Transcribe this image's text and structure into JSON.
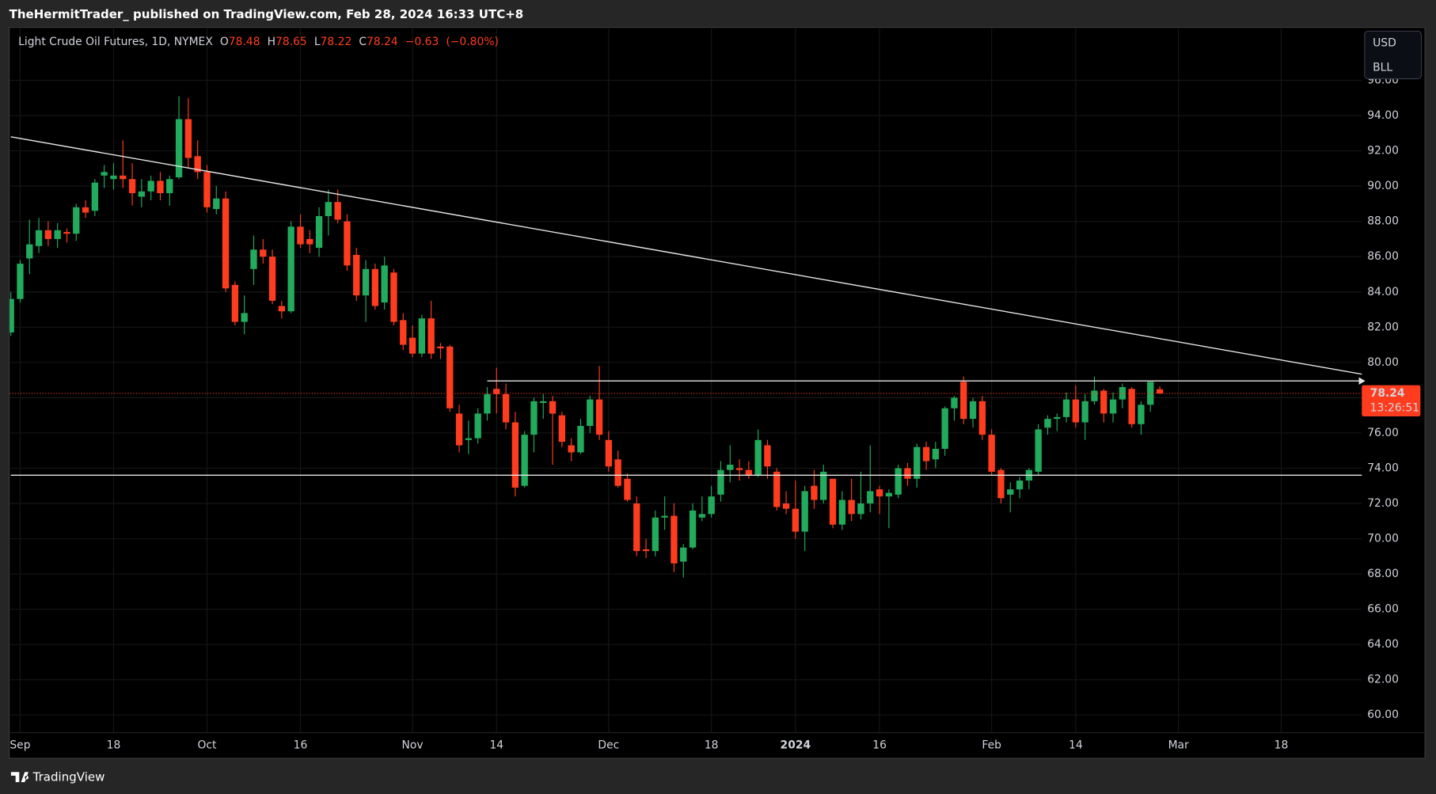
{
  "header": {
    "text": "TheHermitTrader_ published on TradingView.com, Feb 28, 2024 16:33 UTC+8"
  },
  "footer": {
    "brand": "TradingView"
  },
  "chart_data": {
    "type": "candlestick",
    "title": "Light Crude Oil Futures, 1D, NYMEX",
    "ohlc_labels": [
      "O",
      "H",
      "L",
      "C"
    ],
    "change": {
      "value": -0.63,
      "label": "−0.63"
    },
    "change_percent": {
      "value": -0.8,
      "label": "(−0.80%)"
    },
    "countdown": "13:26:51",
    "currency": "USD",
    "unit": "BLL",
    "up_color": "#22ab5c",
    "down_color": "#ff3d1e",
    "grid": true,
    "x": [
      "2023-08-31",
      "2023-09-01",
      "2023-09-05",
      "2023-09-06",
      "2023-09-07",
      "2023-09-08",
      "2023-09-11",
      "2023-09-12",
      "2023-09-13",
      "2023-09-14",
      "2023-09-15",
      "2023-09-18",
      "2023-09-19",
      "2023-09-20",
      "2023-09-21",
      "2023-09-22",
      "2023-09-25",
      "2023-09-26",
      "2023-09-27",
      "2023-09-28",
      "2023-09-29",
      "2023-10-02",
      "2023-10-03",
      "2023-10-04",
      "2023-10-05",
      "2023-10-06",
      "2023-10-09",
      "2023-10-10",
      "2023-10-11",
      "2023-10-12",
      "2023-10-13",
      "2023-10-16",
      "2023-10-17",
      "2023-10-18",
      "2023-10-19",
      "2023-10-20",
      "2023-10-23",
      "2023-10-24",
      "2023-10-25",
      "2023-10-26",
      "2023-10-27",
      "2023-10-30",
      "2023-10-31",
      "2023-11-01",
      "2023-11-02",
      "2023-11-03",
      "2023-11-06",
      "2023-11-07",
      "2023-11-08",
      "2023-11-09",
      "2023-11-10",
      "2023-11-13",
      "2023-11-14",
      "2023-11-15",
      "2023-11-16",
      "2023-11-17",
      "2023-11-20",
      "2023-11-21",
      "2023-11-22",
      "2023-11-24",
      "2023-11-27",
      "2023-11-28",
      "2023-11-29",
      "2023-11-30",
      "2023-12-01",
      "2023-12-04",
      "2023-12-05",
      "2023-12-06",
      "2023-12-07",
      "2023-12-08",
      "2023-12-11",
      "2023-12-12",
      "2023-12-13",
      "2023-12-14",
      "2023-12-15",
      "2023-12-18",
      "2023-12-19",
      "2023-12-20",
      "2023-12-21",
      "2023-12-22",
      "2023-12-26",
      "2023-12-27",
      "2023-12-28",
      "2023-12-29",
      "2024-01-02",
      "2024-01-03",
      "2024-01-04",
      "2024-01-05",
      "2024-01-08",
      "2024-01-09",
      "2024-01-10",
      "2024-01-11",
      "2024-01-12",
      "2024-01-16",
      "2024-01-17",
      "2024-01-18",
      "2024-01-19",
      "2024-01-22",
      "2024-01-23",
      "2024-01-24",
      "2024-01-25",
      "2024-01-26",
      "2024-01-29",
      "2024-01-30",
      "2024-01-31",
      "2024-02-01",
      "2024-02-02",
      "2024-02-05",
      "2024-02-06",
      "2024-02-07",
      "2024-02-08",
      "2024-02-09",
      "2024-02-12",
      "2024-02-13",
      "2024-02-14",
      "2024-02-15",
      "2024-02-16",
      "2024-02-20",
      "2024-02-21",
      "2024-02-22",
      "2024-02-23",
      "2024-02-26",
      "2024-02-27",
      "2024-02-28"
    ],
    "open": [
      81.7,
      83.6,
      85.9,
      86.6,
      87.5,
      87.0,
      87.4,
      87.3,
      88.8,
      88.6,
      90.6,
      90.4,
      90.6,
      90.4,
      89.4,
      89.7,
      90.3,
      89.6,
      90.5,
      93.8,
      91.7,
      90.8,
      88.7,
      89.3,
      84.4,
      82.3,
      85.3,
      86.4,
      86.0,
      83.2,
      82.9,
      87.7,
      87.0,
      86.5,
      88.3,
      89.1,
      88.0,
      86.1,
      83.8,
      85.3,
      83.4,
      85.1,
      82.4,
      81.4,
      80.5,
      82.5,
      80.9,
      80.9,
      77.1,
      75.6,
      75.7,
      77.1,
      78.5,
      78.2,
      76.6,
      73.0,
      75.9,
      77.7,
      77.8,
      77.0,
      75.3,
      74.9,
      76.4,
      77.9,
      75.6,
      74.5,
      73.4,
      72.0,
      69.4,
      69.3,
      71.2,
      71.3,
      68.7,
      69.5,
      71.2,
      71.4,
      72.5,
      73.9,
      74.0,
      73.9,
      73.6,
      75.3,
      73.8,
      72.0,
      71.7,
      70.4,
      73.0,
      72.2,
      73.4,
      70.8,
      72.2,
      71.4,
      72.0,
      72.8,
      72.4,
      72.5,
      74.0,
      73.4,
      75.2,
      74.5,
      75.1,
      77.4,
      78.9,
      76.8,
      77.8,
      75.9,
      73.9,
      72.5,
      72.8,
      73.3,
      73.8,
      76.3,
      76.8,
      76.9,
      77.9,
      76.6,
      77.8,
      78.4,
      77.1,
      77.9,
      78.5,
      76.5,
      77.6,
      78.48
    ],
    "high": [
      84.0,
      85.8,
      88.1,
      88.2,
      88.0,
      87.9,
      87.6,
      89.0,
      89.2,
      90.4,
      91.2,
      91.3,
      92.6,
      91.3,
      90.4,
      90.6,
      90.8,
      90.6,
      95.1,
      95.0,
      92.6,
      91.2,
      90.0,
      89.7,
      84.6,
      83.8,
      87.2,
      87.0,
      86.4,
      83.5,
      88.0,
      88.4,
      87.5,
      88.8,
      89.8,
      89.8,
      88.4,
      86.5,
      85.8,
      85.6,
      86.0,
      85.3,
      82.8,
      82.1,
      82.7,
      83.5,
      81.1,
      81.0,
      77.6,
      76.7,
      77.4,
      78.6,
      79.7,
      78.8,
      77.2,
      76.1,
      78.0,
      78.2,
      78.1,
      77.2,
      75.7,
      76.8,
      78.1,
      79.8,
      76.1,
      75.0,
      73.7,
      72.4,
      70.0,
      71.6,
      72.4,
      72.0,
      69.7,
      72.0,
      72.4,
      73.0,
      74.4,
      75.3,
      74.5,
      74.4,
      76.2,
      75.6,
      74.0,
      72.7,
      73.3,
      73.0,
      73.9,
      74.2,
      73.4,
      72.7,
      73.4,
      73.8,
      75.3,
      73.0,
      72.8,
      74.2,
      74.3,
      75.4,
      75.5,
      75.5,
      77.5,
      78.1,
      79.2,
      78.0,
      78.1,
      76.2,
      74.0,
      73.2,
      73.5,
      74.0,
      76.5,
      77.0,
      77.1,
      78.3,
      78.7,
      78.2,
      79.2,
      78.5,
      78.3,
      78.8,
      78.6,
      77.8,
      78.9,
      78.65
    ],
    "low": [
      81.5,
      83.4,
      85.0,
      86.2,
      86.6,
      86.5,
      86.8,
      86.9,
      88.2,
      88.3,
      89.9,
      89.8,
      89.9,
      88.9,
      88.8,
      89.2,
      89.2,
      88.9,
      90.4,
      91.0,
      90.4,
      88.5,
      88.4,
      84.0,
      82.1,
      81.6,
      84.4,
      85.6,
      83.3,
      82.5,
      82.8,
      86.5,
      86.2,
      86.0,
      87.2,
      87.9,
      85.2,
      83.5,
      82.3,
      83.0,
      83.0,
      82.1,
      80.7,
      80.3,
      80.3,
      80.2,
      80.2,
      77.2,
      74.9,
      74.8,
      75.4,
      76.7,
      77.1,
      76.2,
      72.4,
      72.9,
      74.9,
      76.8,
      74.2,
      75.2,
      74.4,
      74.8,
      76.0,
      75.6,
      73.8,
      72.9,
      72.1,
      69.0,
      68.9,
      69.0,
      70.5,
      68.1,
      67.8,
      69.4,
      71.0,
      71.2,
      72.1,
      73.2,
      73.3,
      73.4,
      73.5,
      73.4,
      71.6,
      71.4,
      70.0,
      69.3,
      71.7,
      72.0,
      70.6,
      70.5,
      71.0,
      71.1,
      71.5,
      71.4,
      70.6,
      72.3,
      73.0,
      72.9,
      73.9,
      74.0,
      74.7,
      76.7,
      76.5,
      76.3,
      75.6,
      73.6,
      72.0,
      71.5,
      72.3,
      72.8,
      73.6,
      75.9,
      76.1,
      76.6,
      76.3,
      75.6,
      77.6,
      76.6,
      76.6,
      77.4,
      76.3,
      75.9,
      77.2,
      78.22
    ],
    "close": [
      83.6,
      85.6,
      86.7,
      87.5,
      87.0,
      87.5,
      87.3,
      88.8,
      88.5,
      90.2,
      90.8,
      90.6,
      90.4,
      89.6,
      89.7,
      90.3,
      89.6,
      90.4,
      93.8,
      91.6,
      90.8,
      88.8,
      89.3,
      84.2,
      82.3,
      82.8,
      86.4,
      86.0,
      83.5,
      82.9,
      87.7,
      86.7,
      86.7,
      88.3,
      89.1,
      88.1,
      85.5,
      83.8,
      85.3,
      83.2,
      85.5,
      82.3,
      81.0,
      80.5,
      82.5,
      80.5,
      80.8,
      77.4,
      75.3,
      75.7,
      77.1,
      78.2,
      78.2,
      76.6,
      72.9,
      75.9,
      77.8,
      77.8,
      77.1,
      75.5,
      74.9,
      76.4,
      77.9,
      75.9,
      74.1,
      73.0,
      72.2,
      69.3,
      69.3,
      71.2,
      71.3,
      68.6,
      69.5,
      71.6,
      71.4,
      72.4,
      73.9,
      74.2,
      73.9,
      73.6,
      75.6,
      74.1,
      71.8,
      71.7,
      70.4,
      72.7,
      72.2,
      73.8,
      70.8,
      72.2,
      71.4,
      72.0,
      72.7,
      72.4,
      72.6,
      74.0,
      73.4,
      75.2,
      74.4,
      75.1,
      77.4,
      78.0,
      76.8,
      77.8,
      75.9,
      73.8,
      72.3,
      72.8,
      73.3,
      73.9,
      76.2,
      76.8,
      76.9,
      77.9,
      76.6,
      77.8,
      78.4,
      77.1,
      77.9,
      78.6,
      76.5,
      77.6,
      78.9,
      78.24
    ],
    "ylim": [
      59.0,
      99.0
    ],
    "yticks": [
      {
        "value": 60,
        "label": "60.00"
      },
      {
        "value": 62,
        "label": "62.00"
      },
      {
        "value": 64,
        "label": "64.00"
      },
      {
        "value": 66,
        "label": "66.00"
      },
      {
        "value": 68,
        "label": "68.00"
      },
      {
        "value": 70,
        "label": "70.00"
      },
      {
        "value": 72,
        "label": "72.00"
      },
      {
        "value": 74,
        "label": "74.00"
      },
      {
        "value": 76,
        "label": "76.00"
      },
      {
        "value": 78,
        "label": "78.00"
      },
      {
        "value": 80,
        "label": "80.00"
      },
      {
        "value": 82,
        "label": "82.00"
      },
      {
        "value": 84,
        "label": "84.00"
      },
      {
        "value": 86,
        "label": "86.00"
      },
      {
        "value": 88,
        "label": "88.00"
      },
      {
        "value": 90,
        "label": "90.00"
      },
      {
        "value": 92,
        "label": "92.00"
      },
      {
        "value": 94,
        "label": "94.00"
      },
      {
        "value": 96,
        "label": "96.00"
      }
    ],
    "xticks": [
      {
        "value": "2023-09-01",
        "label": "Sep"
      },
      {
        "value": "2023-09-18",
        "label": "18"
      },
      {
        "value": "2023-10-02",
        "label": "Oct"
      },
      {
        "value": "2023-10-16",
        "label": "16"
      },
      {
        "value": "2023-11-01",
        "label": "Nov"
      },
      {
        "value": "2023-11-14",
        "label": "14"
      },
      {
        "value": "2023-12-01",
        "label": "Dec"
      },
      {
        "value": "2023-12-18",
        "label": "18"
      },
      {
        "value": "2024-01-02",
        "label": "2024"
      },
      {
        "value": "2024-01-16",
        "label": "16"
      },
      {
        "value": "2024-02-01",
        "label": "Feb"
      },
      {
        "value": "2024-02-14",
        "label": "14"
      },
      {
        "value": "2024-03-01",
        "label": "Mar"
      },
      {
        "value": "2024-03-18",
        "label": "18"
      }
    ],
    "drawings": [
      {
        "x": [
          "2023-08-31",
          "2024-03-29"
        ],
        "y": [
          92.8,
          79.3
        ],
        "color": "#e6e6e6"
      },
      {
        "x": [
          "2023-11-13",
          "2024-03-29"
        ],
        "y": [
          78.95,
          78.95
        ],
        "color": "#e6e6e6",
        "arrow": true
      },
      {
        "x": [
          "2023-08-31",
          "2024-03-29"
        ],
        "y": [
          73.6,
          73.6
        ],
        "color": "#e6e6e6"
      }
    ]
  }
}
